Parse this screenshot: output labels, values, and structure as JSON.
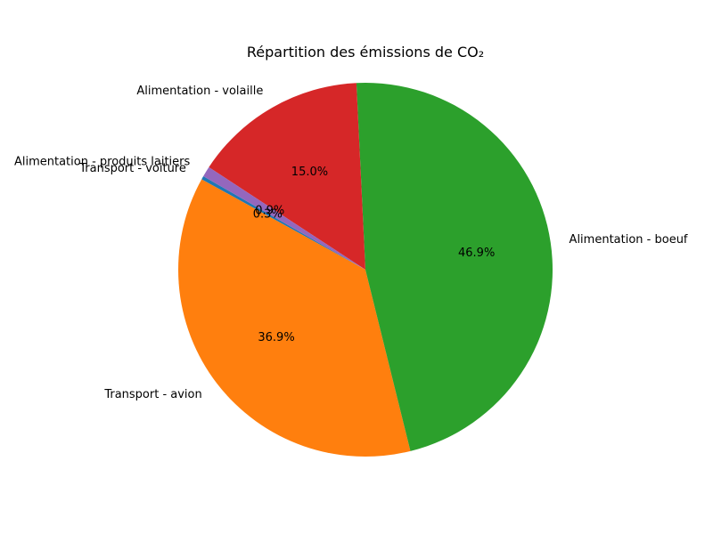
{
  "chart_data": {
    "type": "pie",
    "title": "Répartition des émissions de CO₂",
    "start_angle_deg": 150,
    "direction": "counterclockwise",
    "slices": [
      {
        "label": "Transport - voiture",
        "value": 0.3,
        "pct_label": "0.3%",
        "color": "#1f77b4"
      },
      {
        "label": "Transport - avion",
        "value": 36.9,
        "pct_label": "36.9%",
        "color": "#ff7f0e"
      },
      {
        "label": "Alimentation - boeuf",
        "value": 46.9,
        "pct_label": "46.9%",
        "color": "#2ca02c"
      },
      {
        "label": "Alimentation - volaille",
        "value": 15.0,
        "pct_label": "15.0%",
        "color": "#d62728"
      },
      {
        "label": "Alimentation - produits laitiers",
        "value": 0.9,
        "pct_label": "0.9%",
        "color": "#9467bd"
      }
    ]
  }
}
